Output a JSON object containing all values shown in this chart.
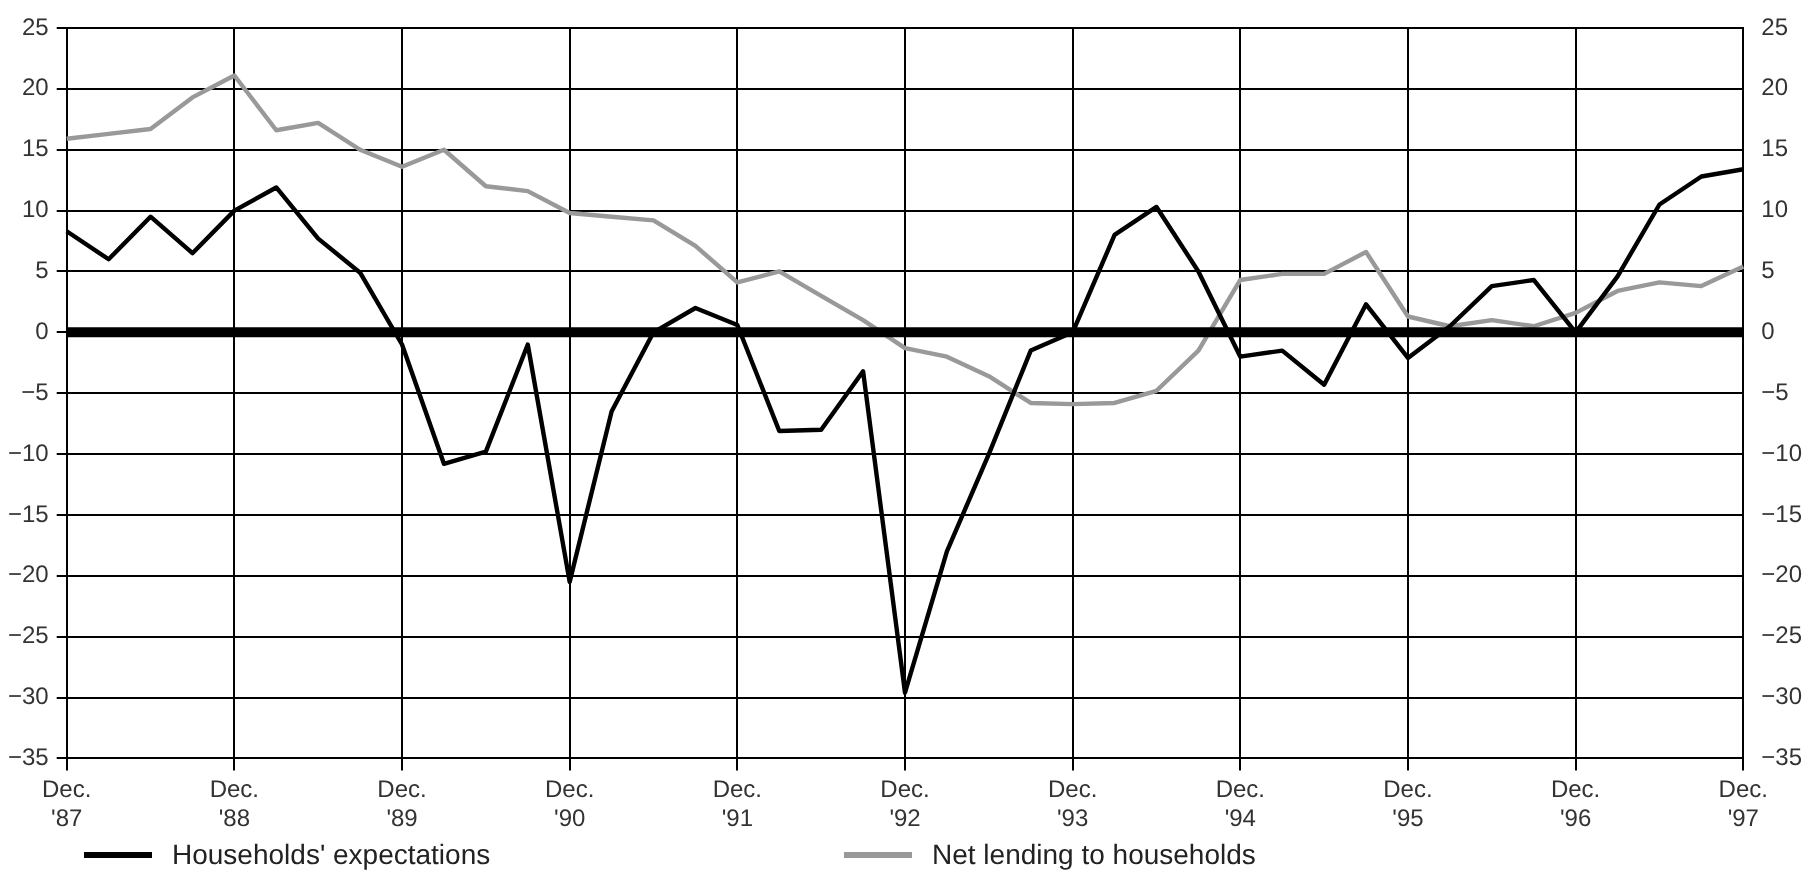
{
  "chart_data": {
    "type": "line",
    "categories": [
      "Dec. '87",
      null,
      null,
      null,
      "Dec. '88",
      null,
      null,
      null,
      "Dec. '89",
      null,
      null,
      null,
      "Dec. '90",
      null,
      null,
      null,
      "Dec. '91",
      null,
      null,
      null,
      "Dec. '92",
      null,
      null,
      null,
      "Dec. '93",
      null,
      null,
      null,
      "Dec. '94",
      null,
      null,
      null,
      "Dec. '95",
      null,
      null,
      null,
      "Dec. '96",
      null,
      null,
      null,
      "Dec. '97"
    ],
    "series": [
      {
        "name": "Households' expectations",
        "color": "#000000",
        "values": [
          8.3,
          6,
          9.5,
          6.5,
          10,
          11.9,
          7.7,
          4.9,
          -1,
          -10.8,
          -9.8,
          -1,
          -20.5,
          -6.5,
          0,
          2,
          0.6,
          -8.1,
          -8,
          -3.2,
          -29.6,
          -18,
          -10,
          -1.5,
          0,
          8,
          10.3,
          5,
          -2,
          -1.5,
          -4.3,
          2.3,
          -2.1,
          0.5,
          3.8,
          4.3,
          0,
          4.6,
          10.5,
          12.8,
          13.4
        ]
      },
      {
        "name": "Net lending to households",
        "color": "#999999",
        "values": [
          15.9,
          16.3,
          16.7,
          19.3,
          21.1,
          16.6,
          17.2,
          15,
          13.6,
          15,
          12,
          11.6,
          9.8,
          9.5,
          9.2,
          7.1,
          4.1,
          5,
          3,
          1,
          -1.3,
          -2,
          -3.6,
          -5.8,
          -5.9,
          -5.8,
          -4.8,
          -1.5,
          4.3,
          4.8,
          4.8,
          6.6,
          1.3,
          0.5,
          1,
          0.5,
          1.6,
          3.4,
          4.1,
          3.8,
          5.4
        ]
      }
    ],
    "ylim": [
      -35,
      25
    ],
    "yticks": [
      -35,
      -30,
      -25,
      -20,
      -15,
      -10,
      -5,
      0,
      5,
      10,
      15,
      20,
      25
    ],
    "y2lim": [
      -35,
      25
    ],
    "y2ticks": [
      -35,
      -30,
      -25,
      -20,
      -15,
      -10,
      -5,
      0,
      5,
      10,
      15,
      20,
      25
    ],
    "ref_lines": [
      {
        "axis": "y",
        "value": 0,
        "color": "#000000"
      }
    ],
    "grid": true,
    "legend": "bottom",
    "marker": "none",
    "line_style": "solid"
  }
}
